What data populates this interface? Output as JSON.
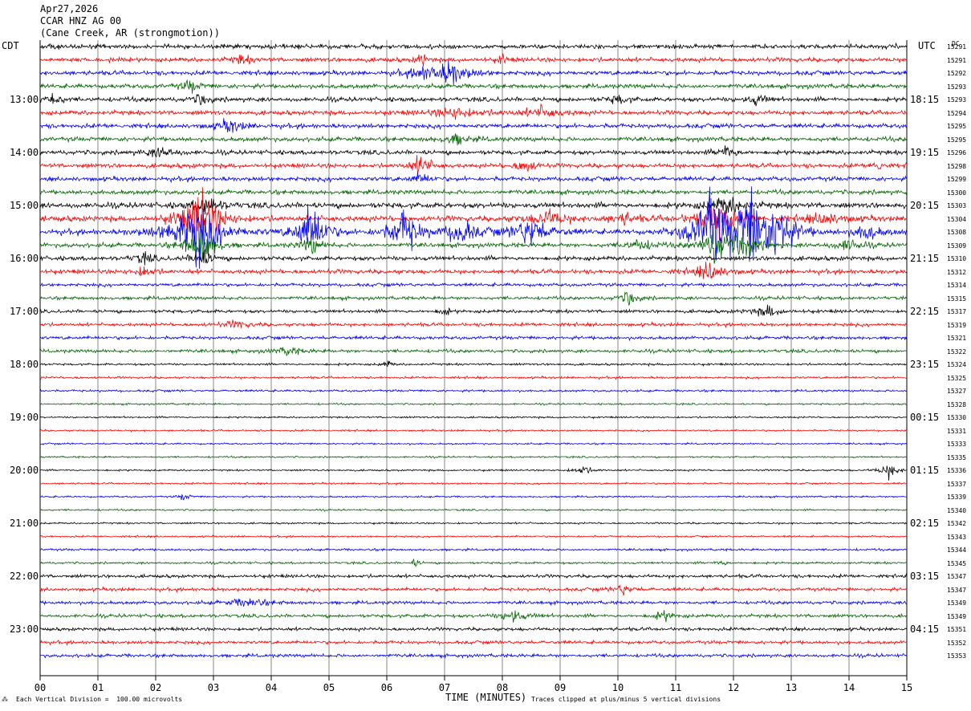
{
  "header": {
    "date": "Apr27,2026",
    "station": "CCAR HNZ AG 00",
    "location": "(Cane Creek, AR (strongmotion))"
  },
  "left_tz": "CDT",
  "right_tz": "UTC",
  "dc_label": "DC",
  "footer": {
    "scale_note": "Each Vertical Division =  100.00 microvolts",
    "xlabel": "TIME (MINUTES)",
    "clip_note": "Traces clipped at plus/minus 5 vertical divisions"
  },
  "chart_data": {
    "type": "line",
    "xlim": [
      0,
      15
    ],
    "x_ticks": [
      "00",
      "01",
      "02",
      "03",
      "04",
      "05",
      "06",
      "07",
      "08",
      "09",
      "10",
      "11",
      "12",
      "13",
      "14",
      "15"
    ],
    "trace_colors": [
      "#000000",
      "#ff0000",
      "#0000ff",
      "#006600"
    ],
    "left_hour_labels": [
      "13:00",
      "14:00",
      "15:00",
      "16:00",
      "17:00",
      "18:00",
      "19:00",
      "20:00",
      "21:00",
      "22:00",
      "23:00"
    ],
    "right_hour_labels": [
      "18:15",
      "19:15",
      "20:15",
      "21:15",
      "22:15",
      "23:15",
      "00:15",
      "01:15",
      "02:15",
      "03:15",
      "04:15"
    ],
    "dc_values": [
      "15291",
      "15291",
      "15292",
      "15293",
      "15293",
      "15294",
      "15295",
      "15295",
      "15296",
      "15298",
      "15299",
      "15300",
      "15303",
      "15304",
      "15308",
      "15309",
      "15310",
      "15312",
      "15314",
      "15315",
      "15317",
      "15319",
      "15321",
      "15322",
      "15324",
      "15325",
      "15327",
      "15328",
      "15330",
      "15331",
      "15333",
      "15335",
      "15336",
      "15337",
      "15339",
      "15340",
      "15342",
      "15343",
      "15344",
      "15345",
      "15347",
      "15347",
      "15349",
      "15349",
      "15351",
      "15352",
      "15353"
    ],
    "trace_count": 47,
    "trace_noise": [
      2,
      2,
      2,
      2,
      2,
      2,
      2,
      2,
      2,
      2,
      2,
      2,
      2.5,
      2.5,
      2.5,
      2,
      2,
      2,
      1.5,
      1.5,
      1.5,
      1.5,
      1.5,
      1.5,
      1,
      1,
      1,
      0.8,
      0.8,
      0.8,
      0.8,
      0.8,
      0.8,
      0.8,
      0.8,
      0.8,
      0.8,
      0.8,
      1,
      1,
      1.5,
      1.5,
      1.5,
      1.5,
      1.5,
      1.5,
      1.5
    ],
    "events": [
      {
        "trace": 0,
        "t": 0.2,
        "amp": 4,
        "dur": 0.1
      },
      {
        "trace": 1,
        "t": 3.5,
        "amp": 5,
        "dur": 0.2
      },
      {
        "trace": 1,
        "t": 6.6,
        "amp": 8,
        "dur": 0.1
      },
      {
        "trace": 1,
        "t": 8.0,
        "amp": 5,
        "dur": 0.1
      },
      {
        "trace": 2,
        "t": 7.1,
        "amp": 12,
        "dur": 0.4
      },
      {
        "trace": 2,
        "t": 6.6,
        "amp": 6,
        "dur": 0.3
      },
      {
        "trace": 3,
        "t": 2.6,
        "amp": 6,
        "dur": 0.2
      },
      {
        "trace": 4,
        "t": 0.2,
        "amp": 8,
        "dur": 0.2
      },
      {
        "trace": 4,
        "t": 2.8,
        "amp": 6,
        "dur": 0.2
      },
      {
        "trace": 4,
        "t": 10.0,
        "amp": 5,
        "dur": 0.2
      },
      {
        "trace": 4,
        "t": 12.4,
        "amp": 6,
        "dur": 0.2
      },
      {
        "trace": 5,
        "t": 7.2,
        "amp": 6,
        "dur": 0.5
      },
      {
        "trace": 5,
        "t": 8.7,
        "amp": 6,
        "dur": 0.4
      },
      {
        "trace": 6,
        "t": 3.3,
        "amp": 7,
        "dur": 0.3
      },
      {
        "trace": 7,
        "t": 7.2,
        "amp": 6,
        "dur": 0.3
      },
      {
        "trace": 8,
        "t": 2.1,
        "amp": 6,
        "dur": 0.3
      },
      {
        "trace": 8,
        "t": 11.9,
        "amp": 7,
        "dur": 0.2
      },
      {
        "trace": 9,
        "t": 6.6,
        "amp": 12,
        "dur": 0.2
      },
      {
        "trace": 9,
        "t": 8.4,
        "amp": 8,
        "dur": 0.2
      },
      {
        "trace": 9,
        "t": 14.5,
        "amp": 8,
        "dur": 0.1
      },
      {
        "trace": 10,
        "t": 6.6,
        "amp": 6,
        "dur": 0.2
      },
      {
        "trace": 12,
        "t": 2.9,
        "amp": 10,
        "dur": 0.3
      },
      {
        "trace": 12,
        "t": 11.9,
        "amp": 10,
        "dur": 0.4
      },
      {
        "trace": 13,
        "t": 2.8,
        "amp": 30,
        "dur": 0.4
      },
      {
        "trace": 13,
        "t": 8.8,
        "amp": 8,
        "dur": 0.4
      },
      {
        "trace": 13,
        "t": 10.1,
        "amp": 6,
        "dur": 0.3
      },
      {
        "trace": 13,
        "t": 11.7,
        "amp": 20,
        "dur": 0.4
      },
      {
        "trace": 13,
        "t": 13.6,
        "amp": 6,
        "dur": 0.4
      },
      {
        "trace": 14,
        "t": 2.7,
        "amp": 35,
        "dur": 0.5
      },
      {
        "trace": 14,
        "t": 4.7,
        "amp": 30,
        "dur": 0.3
      },
      {
        "trace": 14,
        "t": 6.3,
        "amp": 25,
        "dur": 0.3
      },
      {
        "trace": 14,
        "t": 7.3,
        "amp": 15,
        "dur": 0.3
      },
      {
        "trace": 14,
        "t": 8.5,
        "amp": 15,
        "dur": 0.4
      },
      {
        "trace": 14,
        "t": 11.6,
        "amp": 35,
        "dur": 0.4
      },
      {
        "trace": 14,
        "t": 12.3,
        "amp": 35,
        "dur": 0.5
      },
      {
        "trace": 14,
        "t": 12.8,
        "amp": 25,
        "dur": 0.3
      },
      {
        "trace": 14,
        "t": 14.3,
        "amp": 8,
        "dur": 0.3
      },
      {
        "trace": 15,
        "t": 2.8,
        "amp": 20,
        "dur": 0.3
      },
      {
        "trace": 15,
        "t": 4.7,
        "amp": 10,
        "dur": 0.2
      },
      {
        "trace": 15,
        "t": 10.4,
        "amp": 6,
        "dur": 0.3
      },
      {
        "trace": 15,
        "t": 11.7,
        "amp": 18,
        "dur": 0.3
      },
      {
        "trace": 15,
        "t": 12.2,
        "amp": 14,
        "dur": 0.3
      },
      {
        "trace": 15,
        "t": 14.0,
        "amp": 6,
        "dur": 0.3
      },
      {
        "trace": 16,
        "t": 1.8,
        "amp": 6,
        "dur": 0.2
      },
      {
        "trace": 16,
        "t": 2.8,
        "amp": 10,
        "dur": 0.2
      },
      {
        "trace": 17,
        "t": 1.8,
        "amp": 6,
        "dur": 0.2
      },
      {
        "trace": 17,
        "t": 11.6,
        "amp": 10,
        "dur": 0.3
      },
      {
        "trace": 19,
        "t": 10.2,
        "amp": 8,
        "dur": 0.2
      },
      {
        "trace": 20,
        "t": 12.6,
        "amp": 6,
        "dur": 0.3
      },
      {
        "trace": 20,
        "t": 7.0,
        "amp": 5,
        "dur": 0.1
      },
      {
        "trace": 21,
        "t": 3.4,
        "amp": 4,
        "dur": 0.3
      },
      {
        "trace": 23,
        "t": 4.3,
        "amp": 4,
        "dur": 0.3
      },
      {
        "trace": 24,
        "t": 6.0,
        "amp": 5,
        "dur": 0.1
      },
      {
        "trace": 32,
        "t": 9.4,
        "amp": 5,
        "dur": 0.2
      },
      {
        "trace": 32,
        "t": 14.7,
        "amp": 8,
        "dur": 0.2
      },
      {
        "trace": 34,
        "t": 2.5,
        "amp": 5,
        "dur": 0.1
      },
      {
        "trace": 39,
        "t": 6.5,
        "amp": 4,
        "dur": 0.1
      },
      {
        "trace": 39,
        "t": 11.8,
        "amp": 4,
        "dur": 0.1
      },
      {
        "trace": 41,
        "t": 10.1,
        "amp": 5,
        "dur": 0.2
      },
      {
        "trace": 42,
        "t": 3.6,
        "amp": 5,
        "dur": 0.4
      },
      {
        "trace": 43,
        "t": 8.2,
        "amp": 6,
        "dur": 0.3
      },
      {
        "trace": 43,
        "t": 10.8,
        "amp": 5,
        "dur": 0.2
      }
    ]
  }
}
